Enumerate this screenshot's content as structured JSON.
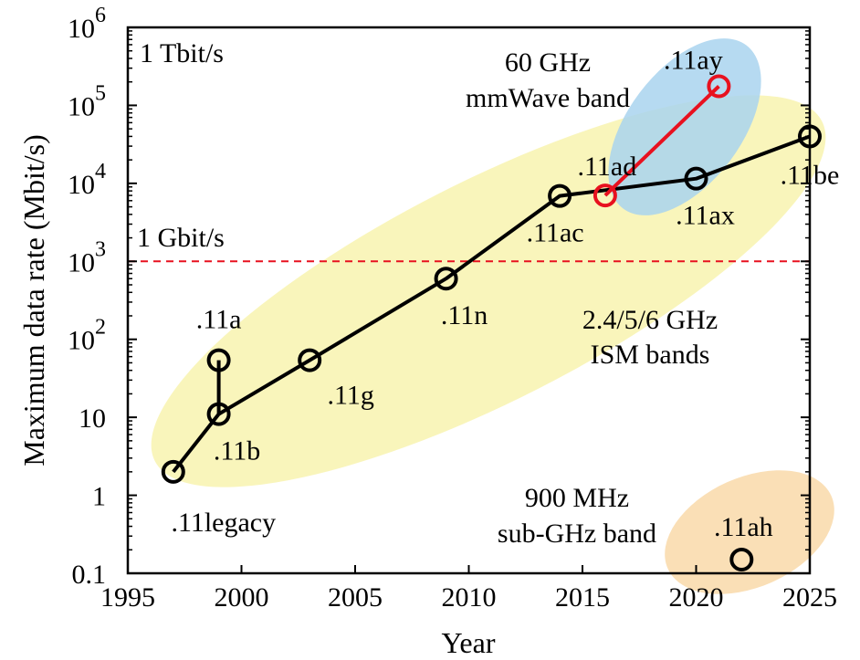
{
  "chart_data": {
    "type": "line",
    "xlabel": "Year",
    "ylabel": "Maximum data rate (Mbit/s)",
    "xlim": [
      1995,
      2025
    ],
    "ylim": [
      0.1,
      1000000
    ],
    "y_scale": "log",
    "x_ticks": [
      1995,
      2000,
      2005,
      2010,
      2015,
      2020,
      2025
    ],
    "y_ticks": [
      {
        "value": 0.1,
        "base": "0.1",
        "exp": ""
      },
      {
        "value": 1,
        "base": "1",
        "exp": ""
      },
      {
        "value": 10,
        "base": "10",
        "exp": ""
      },
      {
        "value": 100,
        "base": "10",
        "exp": "2"
      },
      {
        "value": 1000,
        "base": "10",
        "exp": "3"
      },
      {
        "value": 10000,
        "base": "10",
        "exp": "4"
      },
      {
        "value": 100000,
        "base": "10",
        "exp": "5"
      },
      {
        "value": 1000000,
        "base": "10",
        "exp": "6"
      }
    ],
    "grid": false,
    "series": [
      {
        "color": "#000000",
        "points": [
          {
            "x": 1997,
            "y": 2,
            "label": ".11legacy"
          },
          {
            "x": 1999,
            "y": 11,
            "label": ".11b"
          },
          {
            "x": 2003,
            "y": 54,
            "label": ".11g"
          },
          {
            "x": 2009,
            "y": 600,
            "label": ".11n"
          },
          {
            "x": 2014,
            "y": 6900,
            "label": ".11ac"
          },
          {
            "x": 2020,
            "y": 11500,
            "label": ".11ax"
          },
          {
            "x": 2025,
            "y": 40000,
            "label": ".11be"
          }
        ],
        "branch": {
          "from": {
            "x": 1999,
            "y": 11
          },
          "to": {
            "x": 1999,
            "y": 54,
            "label": ".11a"
          }
        }
      },
      {
        "color": "#e8111f",
        "points": [
          {
            "x": 2016,
            "y": 7000,
            "label": ".11ad"
          },
          {
            "x": 2021,
            "y": 176000,
            "label": ".11ay"
          }
        ]
      },
      {
        "color": "#000000",
        "points": [
          {
            "x": 2022,
            "y": 0.15,
            "label": ".11ah"
          }
        ]
      }
    ],
    "reference_line": {
      "y": 1000,
      "label": "1 Gbit/s",
      "color": "#e8111f",
      "style": "dashed"
    },
    "corner_label": "1 Tbit/s",
    "regions": [
      {
        "label_lines": [
          "60 GHz",
          "mmWave band"
        ],
        "color": "#a9d4ef"
      },
      {
        "label_lines": [
          "2.4/5/6 GHz",
          "ISM bands"
        ],
        "color": "#f7f2a4"
      },
      {
        "label_lines": [
          "900 MHz",
          "sub-GHz band"
        ],
        "color": "#f9dcae"
      }
    ]
  }
}
